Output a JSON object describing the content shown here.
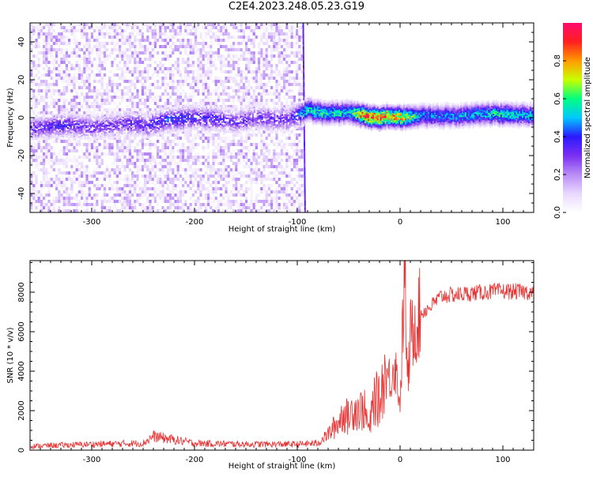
{
  "figure": {
    "title": "C2E4.2023.248.05.23.G19"
  },
  "chart_data": [
    {
      "type": "heatmap",
      "xlabel": "Height of straight line (km)",
      "ylabel": "Frequency (Hz)",
      "xlim": [
        -360,
        130
      ],
      "ylim": [
        -50,
        50
      ],
      "xticks": [
        -300,
        -200,
        -100,
        0,
        100
      ],
      "yticks": [
        -40,
        -20,
        0,
        20,
        40
      ],
      "colorbar": {
        "label": "Normalized spectral amplitude",
        "range": [
          0.0,
          1.0
        ],
        "ticks": [
          0.0,
          0.2,
          0.4,
          0.6,
          0.8
        ],
        "colormap": [
          "#ffffff",
          "#e8d8ff",
          "#b98cf5",
          "#7a2ff0",
          "#2a1aff",
          "#00c8ff",
          "#00ff7f",
          "#c8ff00",
          "#ff9a00",
          "#ff2020",
          "#ff0a6e"
        ]
      },
      "noise_region": {
        "x": [
          -360,
          -95
        ],
        "amplitude": 0.15
      },
      "signal_trace": {
        "x": [
          -360,
          -330,
          -300,
          -270,
          -245,
          -225,
          -200,
          -180,
          -160,
          -140,
          -110,
          -90,
          -70,
          -50,
          -35,
          -20,
          -10,
          0,
          20,
          50,
          80,
          100,
          130
        ],
        "frequency": [
          -6,
          -4,
          -5,
          -3,
          -4,
          -1,
          0,
          -1,
          -2,
          0,
          -1,
          4,
          2,
          3,
          1,
          0,
          1,
          0,
          1,
          1,
          2,
          2,
          1
        ],
        "amplitude": [
          0.3,
          0.35,
          0.3,
          0.3,
          0.35,
          0.4,
          0.35,
          0.35,
          0.3,
          0.3,
          0.3,
          0.55,
          0.55,
          0.5,
          0.85,
          0.85,
          0.75,
          0.8,
          0.45,
          0.45,
          0.5,
          0.55,
          0.45
        ]
      }
    },
    {
      "type": "line",
      "xlabel": "Height of straight line (km)",
      "ylabel": "SNR (10 * v/v)",
      "xlim": [
        -360,
        130
      ],
      "ylim": [
        0,
        9600
      ],
      "xticks": [
        -300,
        -200,
        -100,
        0,
        100
      ],
      "yticks": [
        0,
        2000,
        4000,
        6000,
        8000
      ],
      "color": "#e83030",
      "series": [
        {
          "x": [
            -360,
            -300,
            -250,
            -240,
            -200,
            -150,
            -100,
            -80,
            -70,
            -60,
            -55,
            -50,
            -45,
            -40,
            -35,
            -30,
            -25,
            -20,
            -15,
            -10,
            -5,
            0,
            5,
            7,
            10,
            15,
            20,
            30,
            40,
            60,
            80,
            100,
            130
          ],
          "values": [
            200,
            300,
            350,
            700,
            350,
            300,
            300,
            350,
            800,
            1400,
            1900,
            1600,
            2200,
            2000,
            2100,
            1000,
            2700,
            2400,
            4000,
            3600,
            4400,
            2400,
            9500,
            3000,
            5700,
            6600,
            6900,
            7300,
            7800,
            7900,
            8000,
            8050,
            8000
          ]
        }
      ]
    }
  ]
}
